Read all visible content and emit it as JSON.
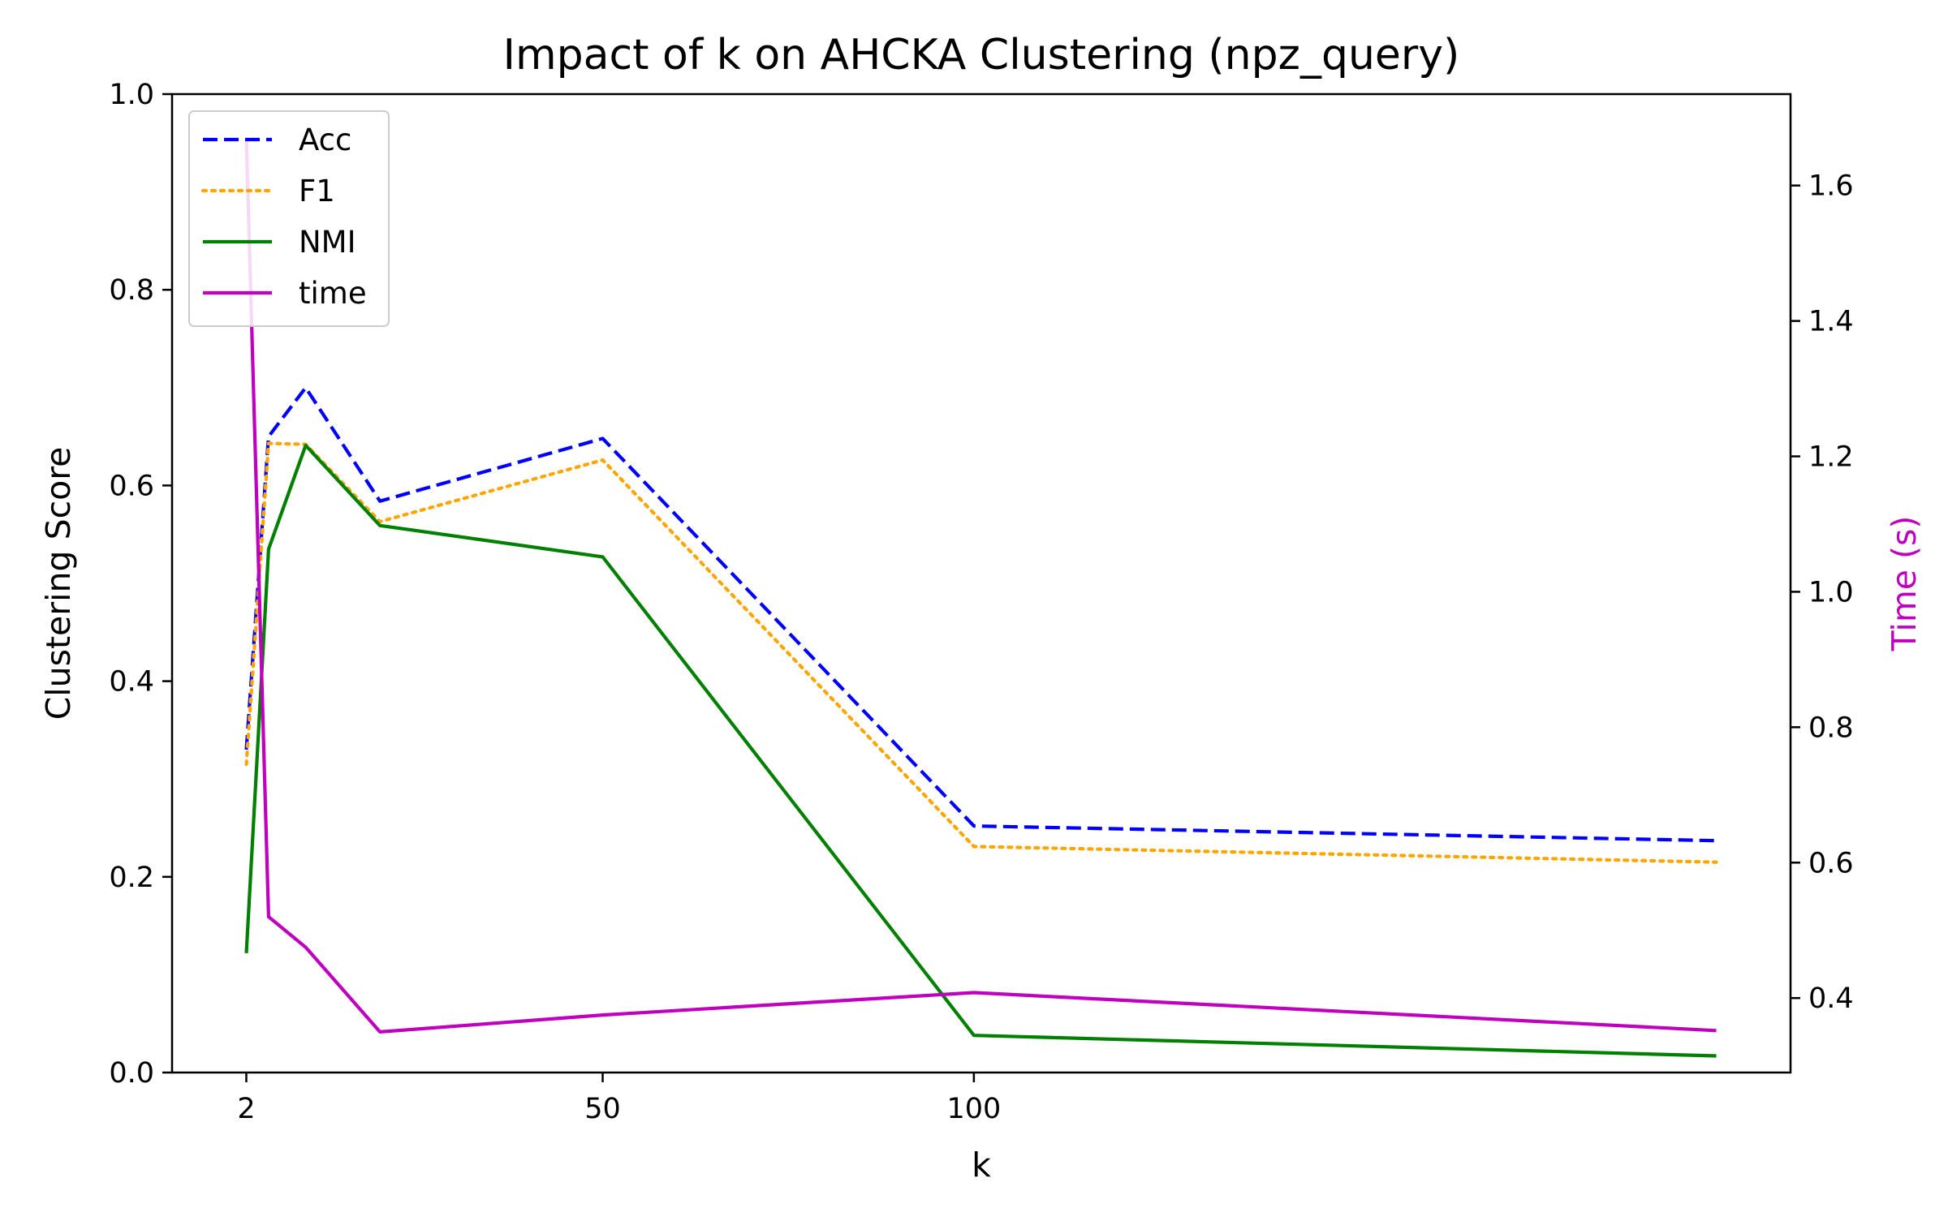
{
  "chart_data": {
    "type": "line",
    "title": "Impact of k on AHCKA Clustering (npz_query)",
    "xlabel": "k",
    "ylabel": "Clustering Score",
    "y2label": "Time (s)",
    "xlim": [
      -8,
      210
    ],
    "ylim": [
      0,
      1
    ],
    "y2lim": [
      0.29,
      1.735
    ],
    "x_ticks": [
      2,
      50,
      100
    ],
    "y_ticks": [
      "0.0",
      "0.2",
      "0.4",
      "0.6",
      "0.8",
      "1.0"
    ],
    "y2_ticks": [
      "0.4",
      "0.6",
      "0.8",
      "1.0",
      "1.2",
      "1.4",
      "1.6"
    ],
    "legend_position": "top-left",
    "grid": false,
    "x": [
      2,
      5,
      10,
      20,
      50,
      100,
      200
    ],
    "series": [
      {
        "name": "Acc",
        "axis": "left",
        "color": "#0000ff",
        "style": "dashed",
        "values": [
          0.33,
          0.65,
          0.7,
          0.584,
          0.648,
          0.252,
          0.237
        ]
      },
      {
        "name": "F1",
        "axis": "left",
        "color": "#ffa500",
        "style": "dotted",
        "values": [
          0.315,
          0.643,
          0.642,
          0.563,
          0.626,
          0.231,
          0.215
        ]
      },
      {
        "name": "NMI",
        "axis": "left",
        "color": "#008000",
        "style": "solid",
        "values": [
          0.122,
          0.535,
          0.641,
          0.559,
          0.527,
          0.038,
          0.017
        ]
      },
      {
        "name": "time",
        "axis": "right",
        "color": "#bf00bf",
        "style": "solid",
        "values": [
          1.67,
          0.52,
          0.475,
          0.35,
          0.375,
          0.408,
          0.352
        ]
      }
    ]
  }
}
